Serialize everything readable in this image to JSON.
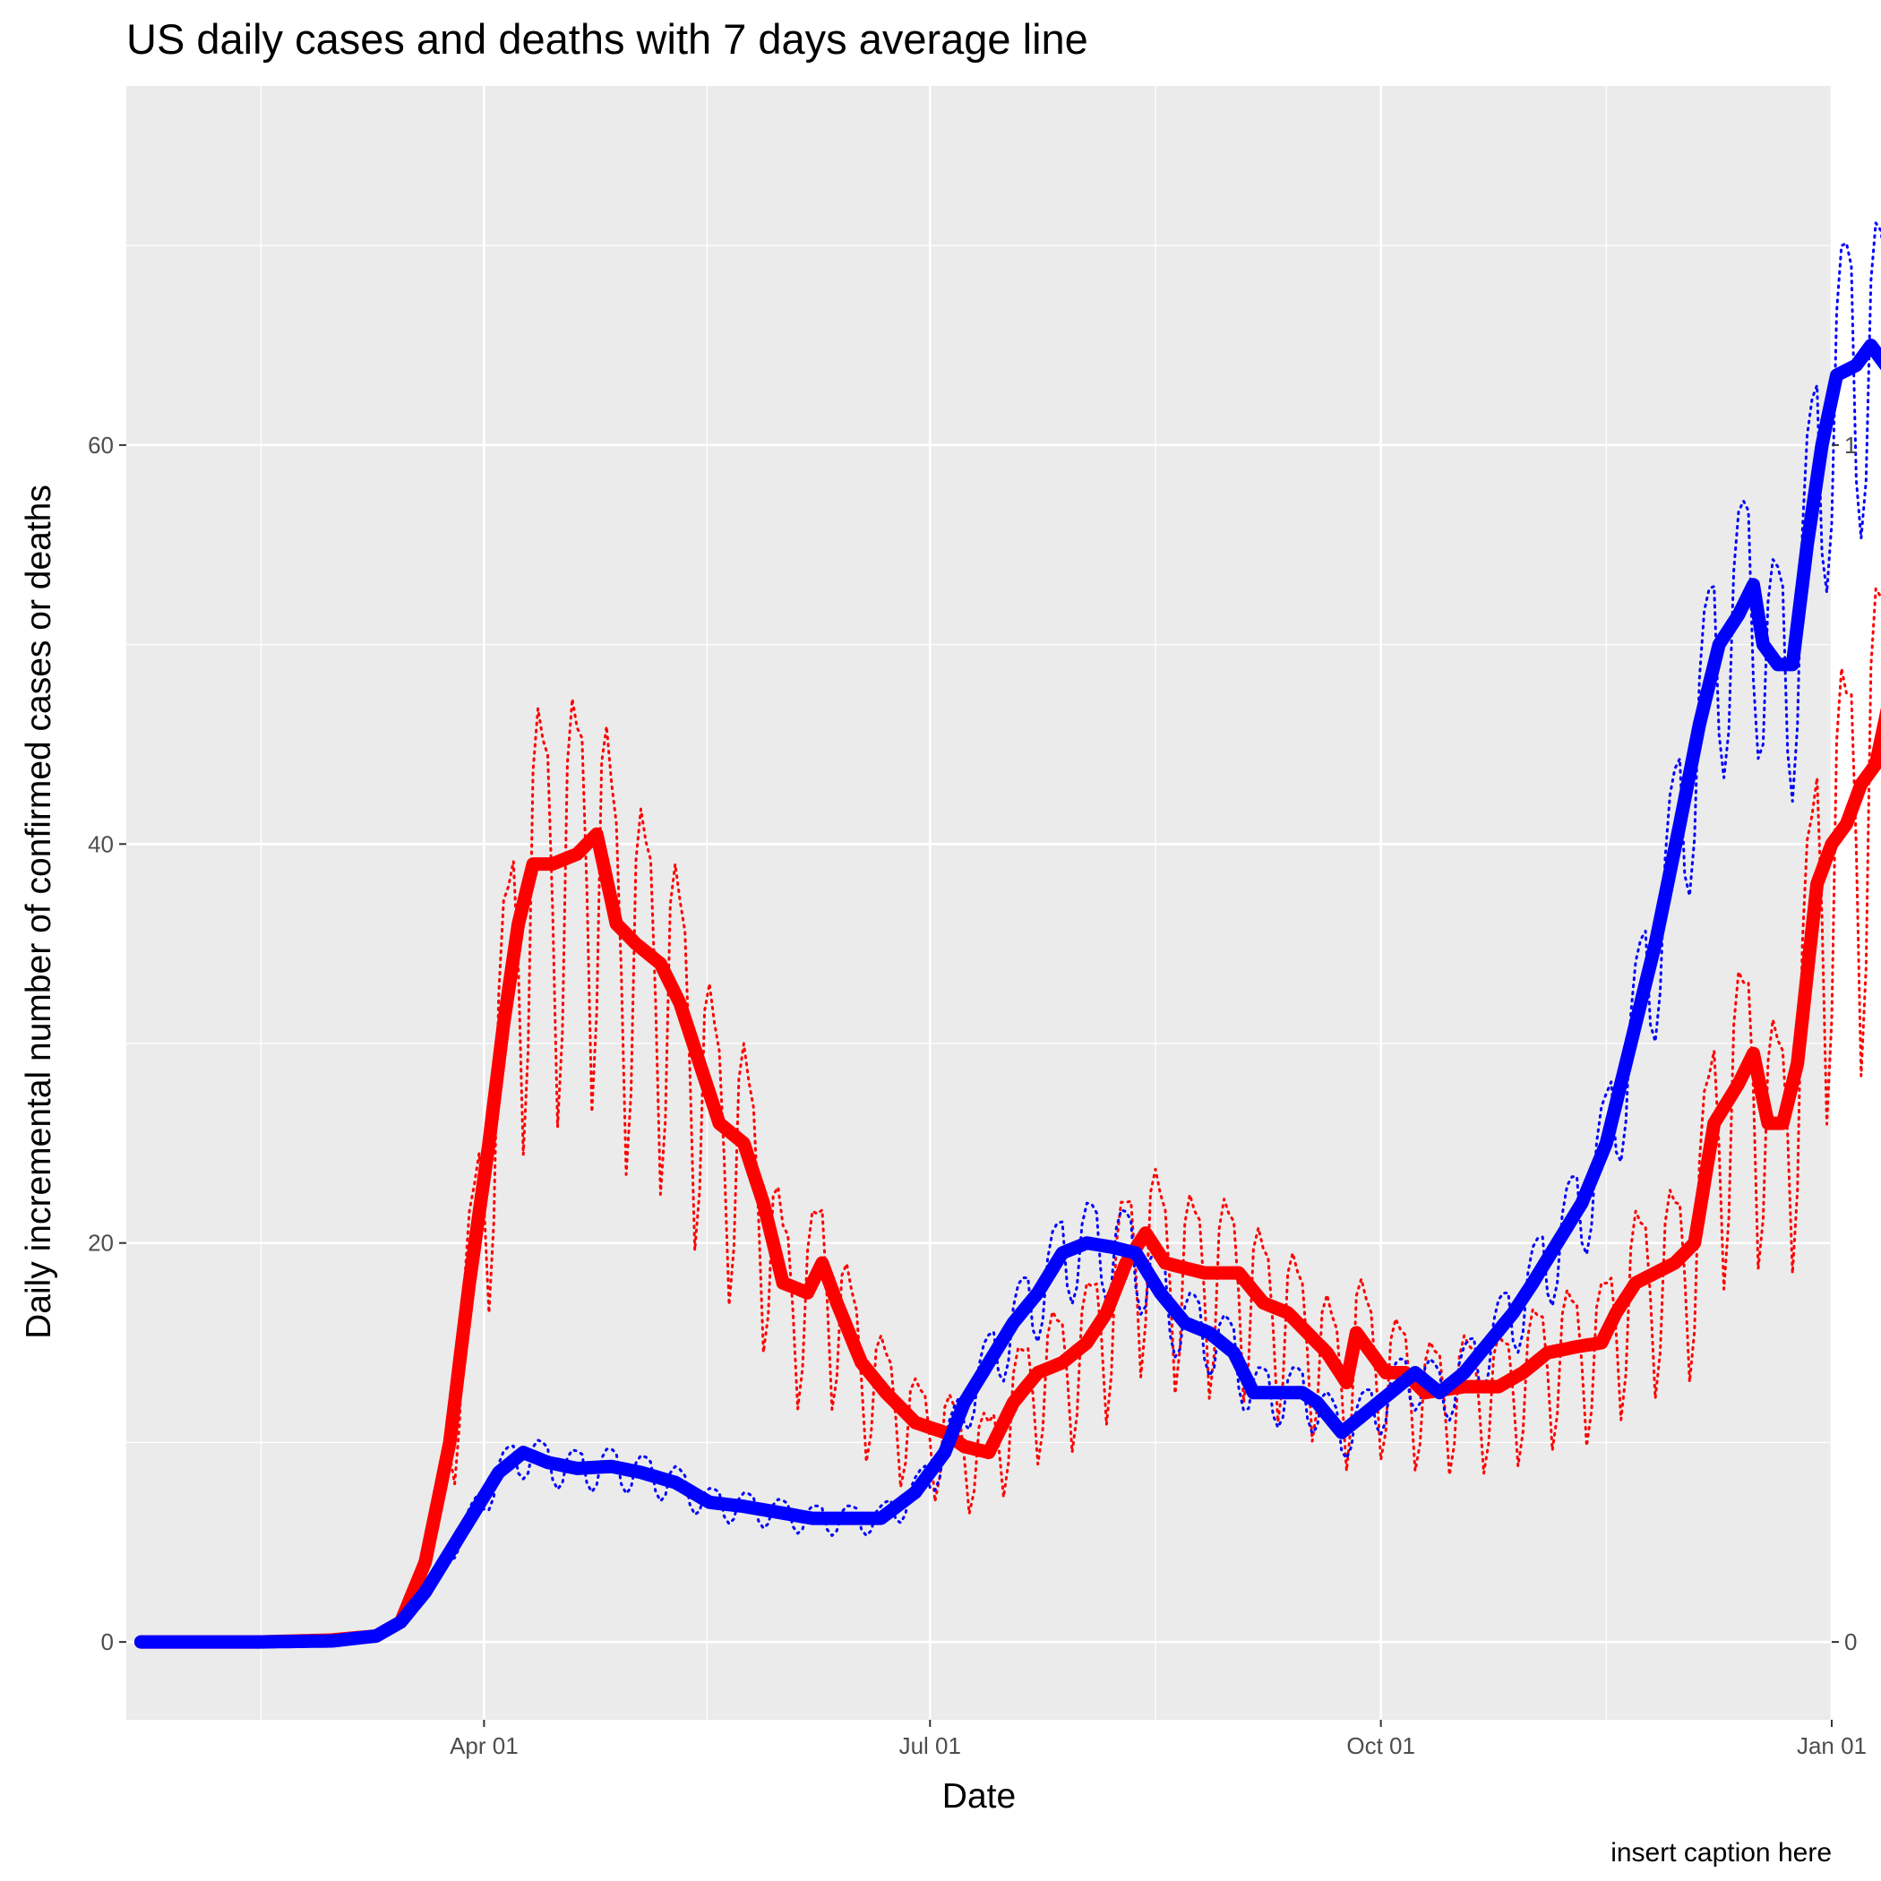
{
  "chart_data": {
    "type": "line",
    "title": "US daily cases and deaths with 7 days average line",
    "xlabel": "Date",
    "ylabel": "Daily incremental number of confirmed cases or deaths",
    "caption": "insert caption here",
    "x_ticks": [
      {
        "label": "Apr 01",
        "date": "2020-04-01"
      },
      {
        "label": "Jul 01",
        "date": "2020-07-01"
      },
      {
        "label": "Oct 01",
        "date": "2020-10-01"
      },
      {
        "label": "Jan 01",
        "date": "2021-01-01"
      }
    ],
    "y_ticks": [
      0,
      20,
      40,
      60
    ],
    "y2_ticks": [
      0,
      1
    ],
    "xlim": [
      "2020-01-19",
      "2021-01-01"
    ],
    "ylim": [
      -3.9,
      78
    ],
    "background": "#ebebeb",
    "grid": true,
    "series": [
      {
        "role": "deaths-7day-average",
        "color": "#ff0000",
        "style": "thick",
        "points": [
          [
            "2020-01-22",
            0
          ],
          [
            "2020-02-15",
            0
          ],
          [
            "2020-03-01",
            0.1
          ],
          [
            "2020-03-10",
            0.3
          ],
          [
            "2020-03-15",
            1
          ],
          [
            "2020-03-20",
            4
          ],
          [
            "2020-03-25",
            10
          ],
          [
            "2020-03-29",
            18
          ],
          [
            "2020-04-02",
            25
          ],
          [
            "2020-04-05",
            31
          ],
          [
            "2020-04-08",
            36
          ],
          [
            "2020-04-11",
            39
          ],
          [
            "2020-04-15",
            39
          ],
          [
            "2020-04-20",
            39.5
          ],
          [
            "2020-04-24",
            40.5
          ],
          [
            "2020-04-28",
            36
          ],
          [
            "2020-05-02",
            35
          ],
          [
            "2020-05-07",
            34
          ],
          [
            "2020-05-11",
            32
          ],
          [
            "2020-05-15",
            29
          ],
          [
            "2020-05-19",
            26
          ],
          [
            "2020-05-24",
            25
          ],
          [
            "2020-05-28",
            22
          ],
          [
            "2020-06-01",
            18
          ],
          [
            "2020-06-06",
            17.5
          ],
          [
            "2020-06-09",
            19
          ],
          [
            "2020-06-12",
            17
          ],
          [
            "2020-06-17",
            14
          ],
          [
            "2020-06-22",
            12.5
          ],
          [
            "2020-06-28",
            11
          ],
          [
            "2020-07-04",
            10.5
          ],
          [
            "2020-07-08",
            9.8
          ],
          [
            "2020-07-13",
            9.5
          ],
          [
            "2020-07-18",
            12
          ],
          [
            "2020-07-23",
            13.5
          ],
          [
            "2020-07-28",
            14
          ],
          [
            "2020-08-02",
            15
          ],
          [
            "2020-08-06",
            16.5
          ],
          [
            "2020-08-10",
            19
          ],
          [
            "2020-08-14",
            20.5
          ],
          [
            "2020-08-18",
            19
          ],
          [
            "2020-08-26",
            18.5
          ],
          [
            "2020-09-02",
            18.5
          ],
          [
            "2020-09-07",
            17
          ],
          [
            "2020-09-12",
            16.5
          ],
          [
            "2020-09-16",
            15.5
          ],
          [
            "2020-09-20",
            14.5
          ],
          [
            "2020-09-24",
            13
          ],
          [
            "2020-09-26",
            15.5
          ],
          [
            "2020-09-29",
            14.5
          ],
          [
            "2020-10-02",
            13.5
          ],
          [
            "2020-10-06",
            13.5
          ],
          [
            "2020-10-10",
            12.5
          ],
          [
            "2020-10-18",
            12.8
          ],
          [
            "2020-10-25",
            12.8
          ],
          [
            "2020-10-30",
            13.5
          ],
          [
            "2020-11-04",
            14.5
          ],
          [
            "2020-11-10",
            14.8
          ],
          [
            "2020-11-15",
            15
          ],
          [
            "2020-11-18",
            16.5
          ],
          [
            "2020-11-22",
            18
          ],
          [
            "2020-11-26",
            18.5
          ],
          [
            "2020-11-30",
            19
          ],
          [
            "2020-12-04",
            20
          ],
          [
            "2020-12-08",
            26
          ],
          [
            "2020-12-13",
            28
          ],
          [
            "2020-12-16",
            29.5
          ],
          [
            "2020-12-19",
            26
          ],
          [
            "2020-12-22",
            26
          ],
          [
            "2020-12-25",
            29
          ],
          [
            "2020-12-29",
            38
          ],
          [
            "2021-01-01",
            40
          ],
          [
            "2021-01-04",
            41
          ],
          [
            "2021-01-07",
            43
          ],
          [
            "2021-01-10",
            44
          ],
          [
            "2021-01-13",
            47.5
          ],
          [
            "2021-01-15",
            47
          ]
        ]
      },
      {
        "role": "cases-7day-average",
        "color": "#0000ff",
        "style": "thick",
        "points": [
          [
            "2020-01-22",
            0
          ],
          [
            "2020-02-15",
            0
          ],
          [
            "2020-03-01",
            0.05
          ],
          [
            "2020-03-10",
            0.3
          ],
          [
            "2020-03-15",
            1
          ],
          [
            "2020-03-20",
            2.5
          ],
          [
            "2020-03-25",
            4.5
          ],
          [
            "2020-03-30",
            6.5
          ],
          [
            "2020-04-04",
            8.5
          ],
          [
            "2020-04-09",
            9.5
          ],
          [
            "2020-04-14",
            9
          ],
          [
            "2020-04-20",
            8.7
          ],
          [
            "2020-04-27",
            8.8
          ],
          [
            "2020-05-03",
            8.5
          ],
          [
            "2020-05-10",
            8
          ],
          [
            "2020-05-17",
            7
          ],
          [
            "2020-05-24",
            6.8
          ],
          [
            "2020-05-31",
            6.5
          ],
          [
            "2020-06-07",
            6.2
          ],
          [
            "2020-06-14",
            6.2
          ],
          [
            "2020-06-21",
            6.2
          ],
          [
            "2020-06-28",
            7.5
          ],
          [
            "2020-07-04",
            9.5
          ],
          [
            "2020-07-08",
            12
          ],
          [
            "2020-07-13",
            14
          ],
          [
            "2020-07-18",
            16
          ],
          [
            "2020-07-23",
            17.5
          ],
          [
            "2020-07-28",
            19.5
          ],
          [
            "2020-08-02",
            20
          ],
          [
            "2020-08-07",
            19.8
          ],
          [
            "2020-08-12",
            19.5
          ],
          [
            "2020-08-17",
            17.5
          ],
          [
            "2020-08-22",
            16
          ],
          [
            "2020-08-27",
            15.5
          ],
          [
            "2020-09-01",
            14.5
          ],
          [
            "2020-09-05",
            12.5
          ],
          [
            "2020-09-10",
            12.5
          ],
          [
            "2020-09-15",
            12.5
          ],
          [
            "2020-09-18",
            12
          ],
          [
            "2020-09-23",
            10.5
          ],
          [
            "2020-09-28",
            11.5
          ],
          [
            "2020-10-03",
            12.5
          ],
          [
            "2020-10-08",
            13.5
          ],
          [
            "2020-10-13",
            12.5
          ],
          [
            "2020-10-18",
            13.5
          ],
          [
            "2020-10-23",
            15
          ],
          [
            "2020-10-28",
            16.5
          ],
          [
            "2020-11-01",
            18
          ],
          [
            "2020-11-06",
            20
          ],
          [
            "2020-11-11",
            22
          ],
          [
            "2020-11-16",
            25
          ],
          [
            "2020-11-21",
            30
          ],
          [
            "2020-11-26",
            35
          ],
          [
            "2020-12-01",
            41
          ],
          [
            "2020-12-05",
            46
          ],
          [
            "2020-12-09",
            50
          ],
          [
            "2020-12-13",
            51.5
          ],
          [
            "2020-12-16",
            53
          ],
          [
            "2020-12-18",
            50
          ],
          [
            "2020-12-21",
            49
          ],
          [
            "2020-12-24",
            49
          ],
          [
            "2020-12-27",
            55
          ],
          [
            "2020-12-30",
            60
          ],
          [
            "2021-01-02",
            63.5
          ],
          [
            "2021-01-06",
            64
          ],
          [
            "2021-01-09",
            65
          ],
          [
            "2021-01-12",
            64
          ],
          [
            "2021-01-15",
            65.5
          ]
        ]
      }
    ]
  }
}
